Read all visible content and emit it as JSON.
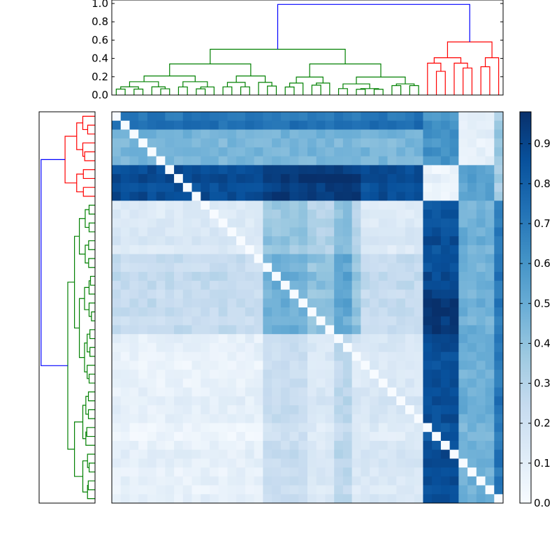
{
  "chart_data": [
    {
      "type": "dendrogram",
      "name": "column-dendrogram",
      "orientation": "top",
      "ylim": [
        0,
        1.0
      ],
      "yticks": [
        0.0,
        0.2,
        0.4,
        0.6,
        0.8,
        1.0
      ],
      "ytick_labels": [
        "0.0",
        "0.2",
        "0.4",
        "0.6",
        "0.8",
        "1.0"
      ],
      "leaf_count": 44,
      "clusters": [
        {
          "name": "green",
          "color": "#008000",
          "leaf_range": [
            0,
            34
          ],
          "merge_height": 0.5
        },
        {
          "name": "red",
          "color": "#ff0000",
          "leaf_range": [
            35,
            43
          ],
          "merge_height": 0.58
        }
      ],
      "root": {
        "color": "#0000ff",
        "height": 0.99
      }
    },
    {
      "type": "dendrogram",
      "name": "row-dendrogram",
      "orientation": "left",
      "leaf_count": 44,
      "clusters": [
        {
          "name": "red",
          "color": "#ff0000",
          "merge_height": 0.55
        },
        {
          "name": "green",
          "color": "#008000",
          "merge_height": 0.5
        }
      ],
      "root": {
        "color": "#0000ff",
        "height": 0.99
      }
    },
    {
      "type": "heatmap",
      "name": "distance-heatmap",
      "colormap": "Blues",
      "rows": 44,
      "cols": 44,
      "vmin": 0.0,
      "vmax": 0.98,
      "description_blocks": [
        {
          "rows": [
            0,
            9
          ],
          "cols": [
            0,
            34
          ],
          "value": 0.72
        },
        {
          "rows": [
            0,
            9
          ],
          "cols": [
            35,
            43
          ],
          "value": 0.35
        },
        {
          "rows": [
            10,
            43
          ],
          "cols": [
            0,
            34
          ],
          "value": 0.22
        },
        {
          "rows": [
            10,
            43
          ],
          "cols": [
            35,
            38
          ],
          "value": 0.88
        },
        {
          "rows": [
            10,
            43
          ],
          "cols": [
            39,
            42
          ],
          "value": 0.5
        }
      ],
      "colorbar": {
        "ticks": [
          0.0,
          0.1,
          0.2,
          0.3,
          0.4,
          0.5,
          0.6,
          0.7,
          0.8,
          0.9
        ],
        "tick_labels": [
          "0.0",
          "0.1",
          "0.2",
          "0.3",
          "0.4",
          "0.5",
          "0.6",
          "0.7",
          "0.8",
          "0.9"
        ]
      }
    }
  ]
}
